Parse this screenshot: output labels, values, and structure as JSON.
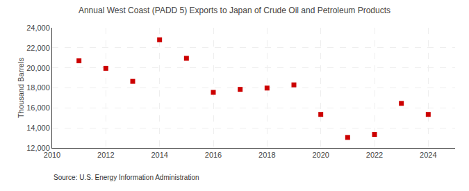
{
  "chart_data": {
    "type": "scatter",
    "title": "Annual West Coast (PADD 5) Exports to Japan of Crude Oil and Petroleum Products",
    "ylabel": "Thousand Barrels",
    "source": "Source: U.S. Energy Information Administration",
    "x": [
      2011,
      2012,
      2013,
      2014,
      2015,
      2016,
      2017,
      2018,
      2019,
      2020,
      2021,
      2022,
      2023,
      2024
    ],
    "values": [
      20700,
      19950,
      18650,
      22800,
      20950,
      17550,
      17850,
      17980,
      18300,
      15350,
      13050,
      13350,
      16450,
      15350
    ],
    "color": "#cc0000",
    "marker": "square",
    "xlim": [
      2010,
      2025
    ],
    "xticks": [
      2010,
      2012,
      2014,
      2016,
      2018,
      2020,
      2022,
      2024
    ],
    "ylim": [
      12000,
      24000
    ],
    "yticks": [
      {
        "value": 12000,
        "label": "12,000"
      },
      {
        "value": 14000,
        "label": "14,000"
      },
      {
        "value": 16000,
        "label": "16,000"
      },
      {
        "value": 18000,
        "label": "18,000"
      },
      {
        "value": 20000,
        "label": "20,000"
      },
      {
        "value": 22000,
        "label": "22,000"
      },
      {
        "value": 24000,
        "label": "24,000"
      }
    ],
    "grid": true
  }
}
